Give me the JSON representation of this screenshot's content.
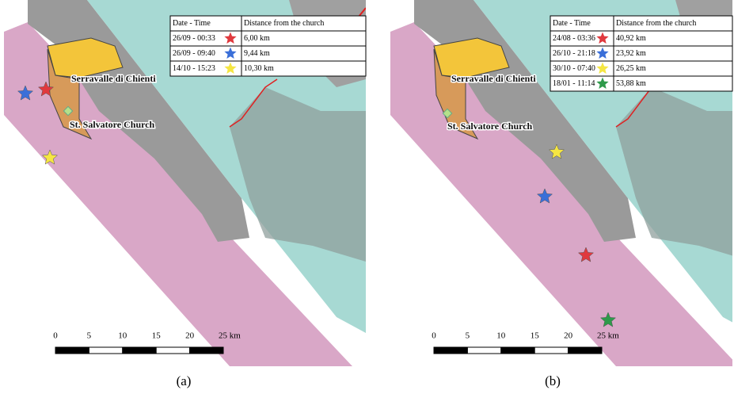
{
  "panels": [
    {
      "label": "(a)",
      "places": [
        "Serravalle di Chienti",
        "St. Salvatore Church"
      ],
      "table": {
        "header": [
          "Date - Time",
          "Distance from the church"
        ],
        "rows": [
          {
            "time": "26/09 - 00:33",
            "distance": "6,00 km",
            "color": "#e0393e"
          },
          {
            "time": "26/09 - 09:40",
            "distance": "9,44 km",
            "color": "#3a6fd8"
          },
          {
            "time": "14/10 - 15:23",
            "distance": "10,30 km",
            "color": "#f5e642"
          }
        ]
      },
      "scale": [
        "0",
        "5",
        "10",
        "15",
        "20",
        "25 km"
      ]
    },
    {
      "label": "(b)",
      "places": [
        "Serravalle di Chienti",
        "St. Salvatore Church"
      ],
      "table": {
        "header": [
          "Date - Time",
          "Distance from the church"
        ],
        "rows": [
          {
            "time": "24/08 - 03:36",
            "distance": "40,92 km",
            "color": "#e0393e"
          },
          {
            "time": "26/10 - 21:18",
            "distance": "23,92 km",
            "color": "#3a6fd8"
          },
          {
            "time": "30/10 - 07:40",
            "distance": "26,25 km",
            "color": "#f5e642"
          },
          {
            "time": "18/01 - 11:14",
            "distance": "53,88 km",
            "color": "#2e9a4a"
          }
        ]
      },
      "scale": [
        "0",
        "5",
        "10",
        "15",
        "20",
        "25 km"
      ]
    }
  ]
}
